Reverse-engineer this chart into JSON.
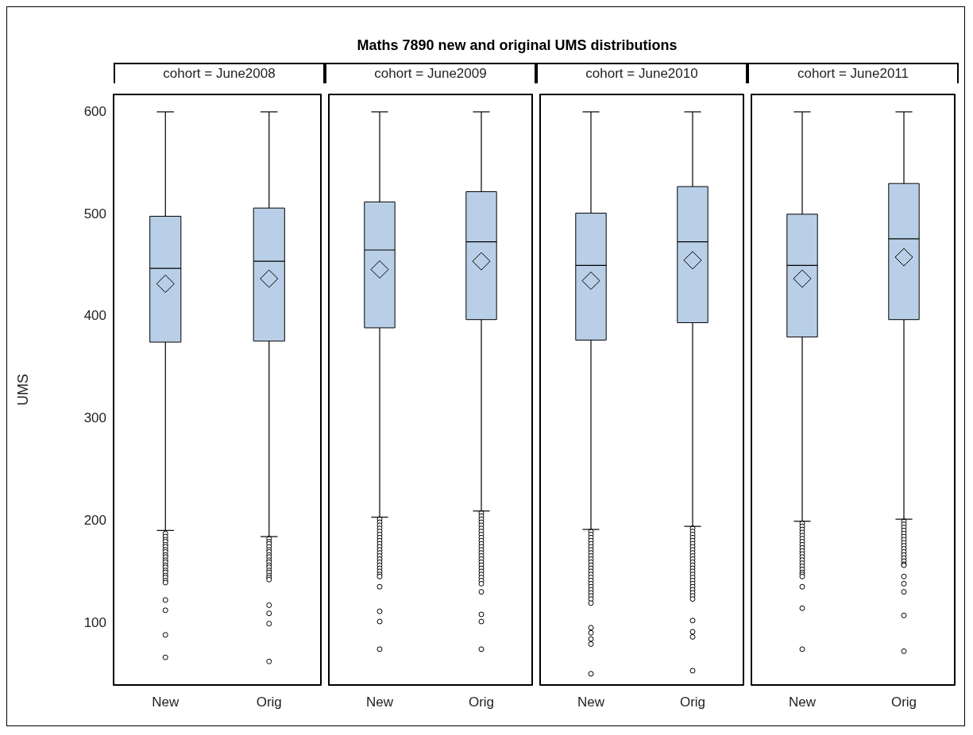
{
  "chart_data": [
    {
      "type": "box",
      "subtitle": "cohort = June2008",
      "ylabel": "UMS",
      "categories": [
        "New",
        "Orig"
      ],
      "color": "#b9cfe7",
      "ylim": [
        40,
        617
      ],
      "yticks": [
        100,
        200,
        300,
        400,
        500,
        600
      ],
      "boxes": [
        {
          "low": 191,
          "q1": 375,
          "median": 447,
          "q3": 498,
          "high": 600,
          "mean": 432,
          "outliers": [
            188,
            185,
            182,
            180,
            177,
            175,
            172,
            170,
            167,
            165,
            162,
            160,
            157,
            155,
            152,
            150,
            147,
            145,
            142,
            140,
            123,
            113,
            89,
            67
          ]
        },
        {
          "low": 185,
          "q1": 376,
          "median": 454,
          "q3": 506,
          "high": 600,
          "mean": 437,
          "outliers": [
            183,
            180,
            178,
            175,
            172,
            170,
            167,
            165,
            162,
            160,
            157,
            155,
            152,
            150,
            147,
            145,
            143,
            118,
            110,
            100,
            63
          ]
        }
      ]
    },
    {
      "type": "box",
      "title": "Maths 7890 new and original UMS distributions",
      "subtitle": "cohort = June2009",
      "categories": [
        "New",
        "Orig"
      ],
      "color": "#b9cfe7",
      "ylim": [
        40,
        617
      ],
      "yticks": [
        100,
        200,
        300,
        400,
        500,
        600
      ],
      "tick_labels": "x",
      "boxes": [
        {
          "low": 204,
          "q1": 389,
          "median": 465,
          "q3": 512,
          "high": 600,
          "mean": 446,
          "outliers": [
            202,
            199,
            196,
            193,
            190,
            187,
            184,
            181,
            178,
            175,
            172,
            169,
            166,
            163,
            160,
            157,
            154,
            151,
            148,
            146,
            136,
            112,
            102,
            75
          ]
        },
        {
          "low": 210,
          "q1": 397,
          "median": 473,
          "q3": 522,
          "high": 600,
          "mean": 454,
          "outliers": [
            208,
            205,
            202,
            199,
            196,
            193,
            190,
            187,
            184,
            181,
            178,
            175,
            172,
            169,
            166,
            163,
            160,
            157,
            154,
            151,
            148,
            145,
            142,
            139,
            131,
            109,
            102,
            75
          ]
        }
      ]
    },
    {
      "type": "box",
      "subtitle": "cohort = June2010",
      "categories": [
        "New",
        "Orig"
      ],
      "color": "#b9cfe7",
      "ylim": [
        40,
        617
      ],
      "yticks": [
        100,
        200,
        300,
        400,
        500,
        600
      ],
      "tick_labels": "x",
      "boxes": [
        {
          "low": 192,
          "q1": 377,
          "median": 450,
          "q3": 501,
          "high": 600,
          "mean": 435,
          "outliers": [
            190,
            187,
            184,
            181,
            178,
            175,
            172,
            169,
            166,
            163,
            160,
            157,
            154,
            151,
            148,
            145,
            142,
            139,
            136,
            133,
            130,
            127,
            124,
            120,
            96,
            91,
            85,
            80,
            51
          ]
        },
        {
          "low": 195,
          "q1": 394,
          "median": 473,
          "q3": 527,
          "high": 600,
          "mean": 455,
          "outliers": [
            193,
            190,
            187,
            184,
            181,
            178,
            175,
            172,
            169,
            166,
            163,
            160,
            157,
            154,
            151,
            148,
            145,
            142,
            139,
            136,
            133,
            130,
            127,
            124,
            103,
            92,
            87,
            54
          ]
        }
      ]
    },
    {
      "type": "box",
      "subtitle": "cohort = June2011",
      "categories": [
        "New",
        "Orig"
      ],
      "color": "#b9cfe7",
      "ylim": [
        40,
        617
      ],
      "yticks": [
        100,
        200,
        300,
        400,
        500,
        600
      ],
      "tick_labels": "x",
      "boxes": [
        {
          "low": 200,
          "q1": 380,
          "median": 450,
          "q3": 500,
          "high": 600,
          "mean": 437,
          "outliers": [
            198,
            195,
            192,
            189,
            186,
            183,
            180,
            177,
            174,
            171,
            168,
            165,
            162,
            159,
            156,
            153,
            150,
            148,
            146,
            136,
            115,
            75
          ]
        },
        {
          "low": 202,
          "q1": 397,
          "median": 476,
          "q3": 530,
          "high": 600,
          "mean": 458,
          "outliers": [
            200,
            197,
            194,
            191,
            188,
            185,
            182,
            179,
            176,
            173,
            170,
            167,
            164,
            161,
            158,
            157,
            146,
            139,
            131,
            108,
            73
          ]
        }
      ]
    }
  ]
}
